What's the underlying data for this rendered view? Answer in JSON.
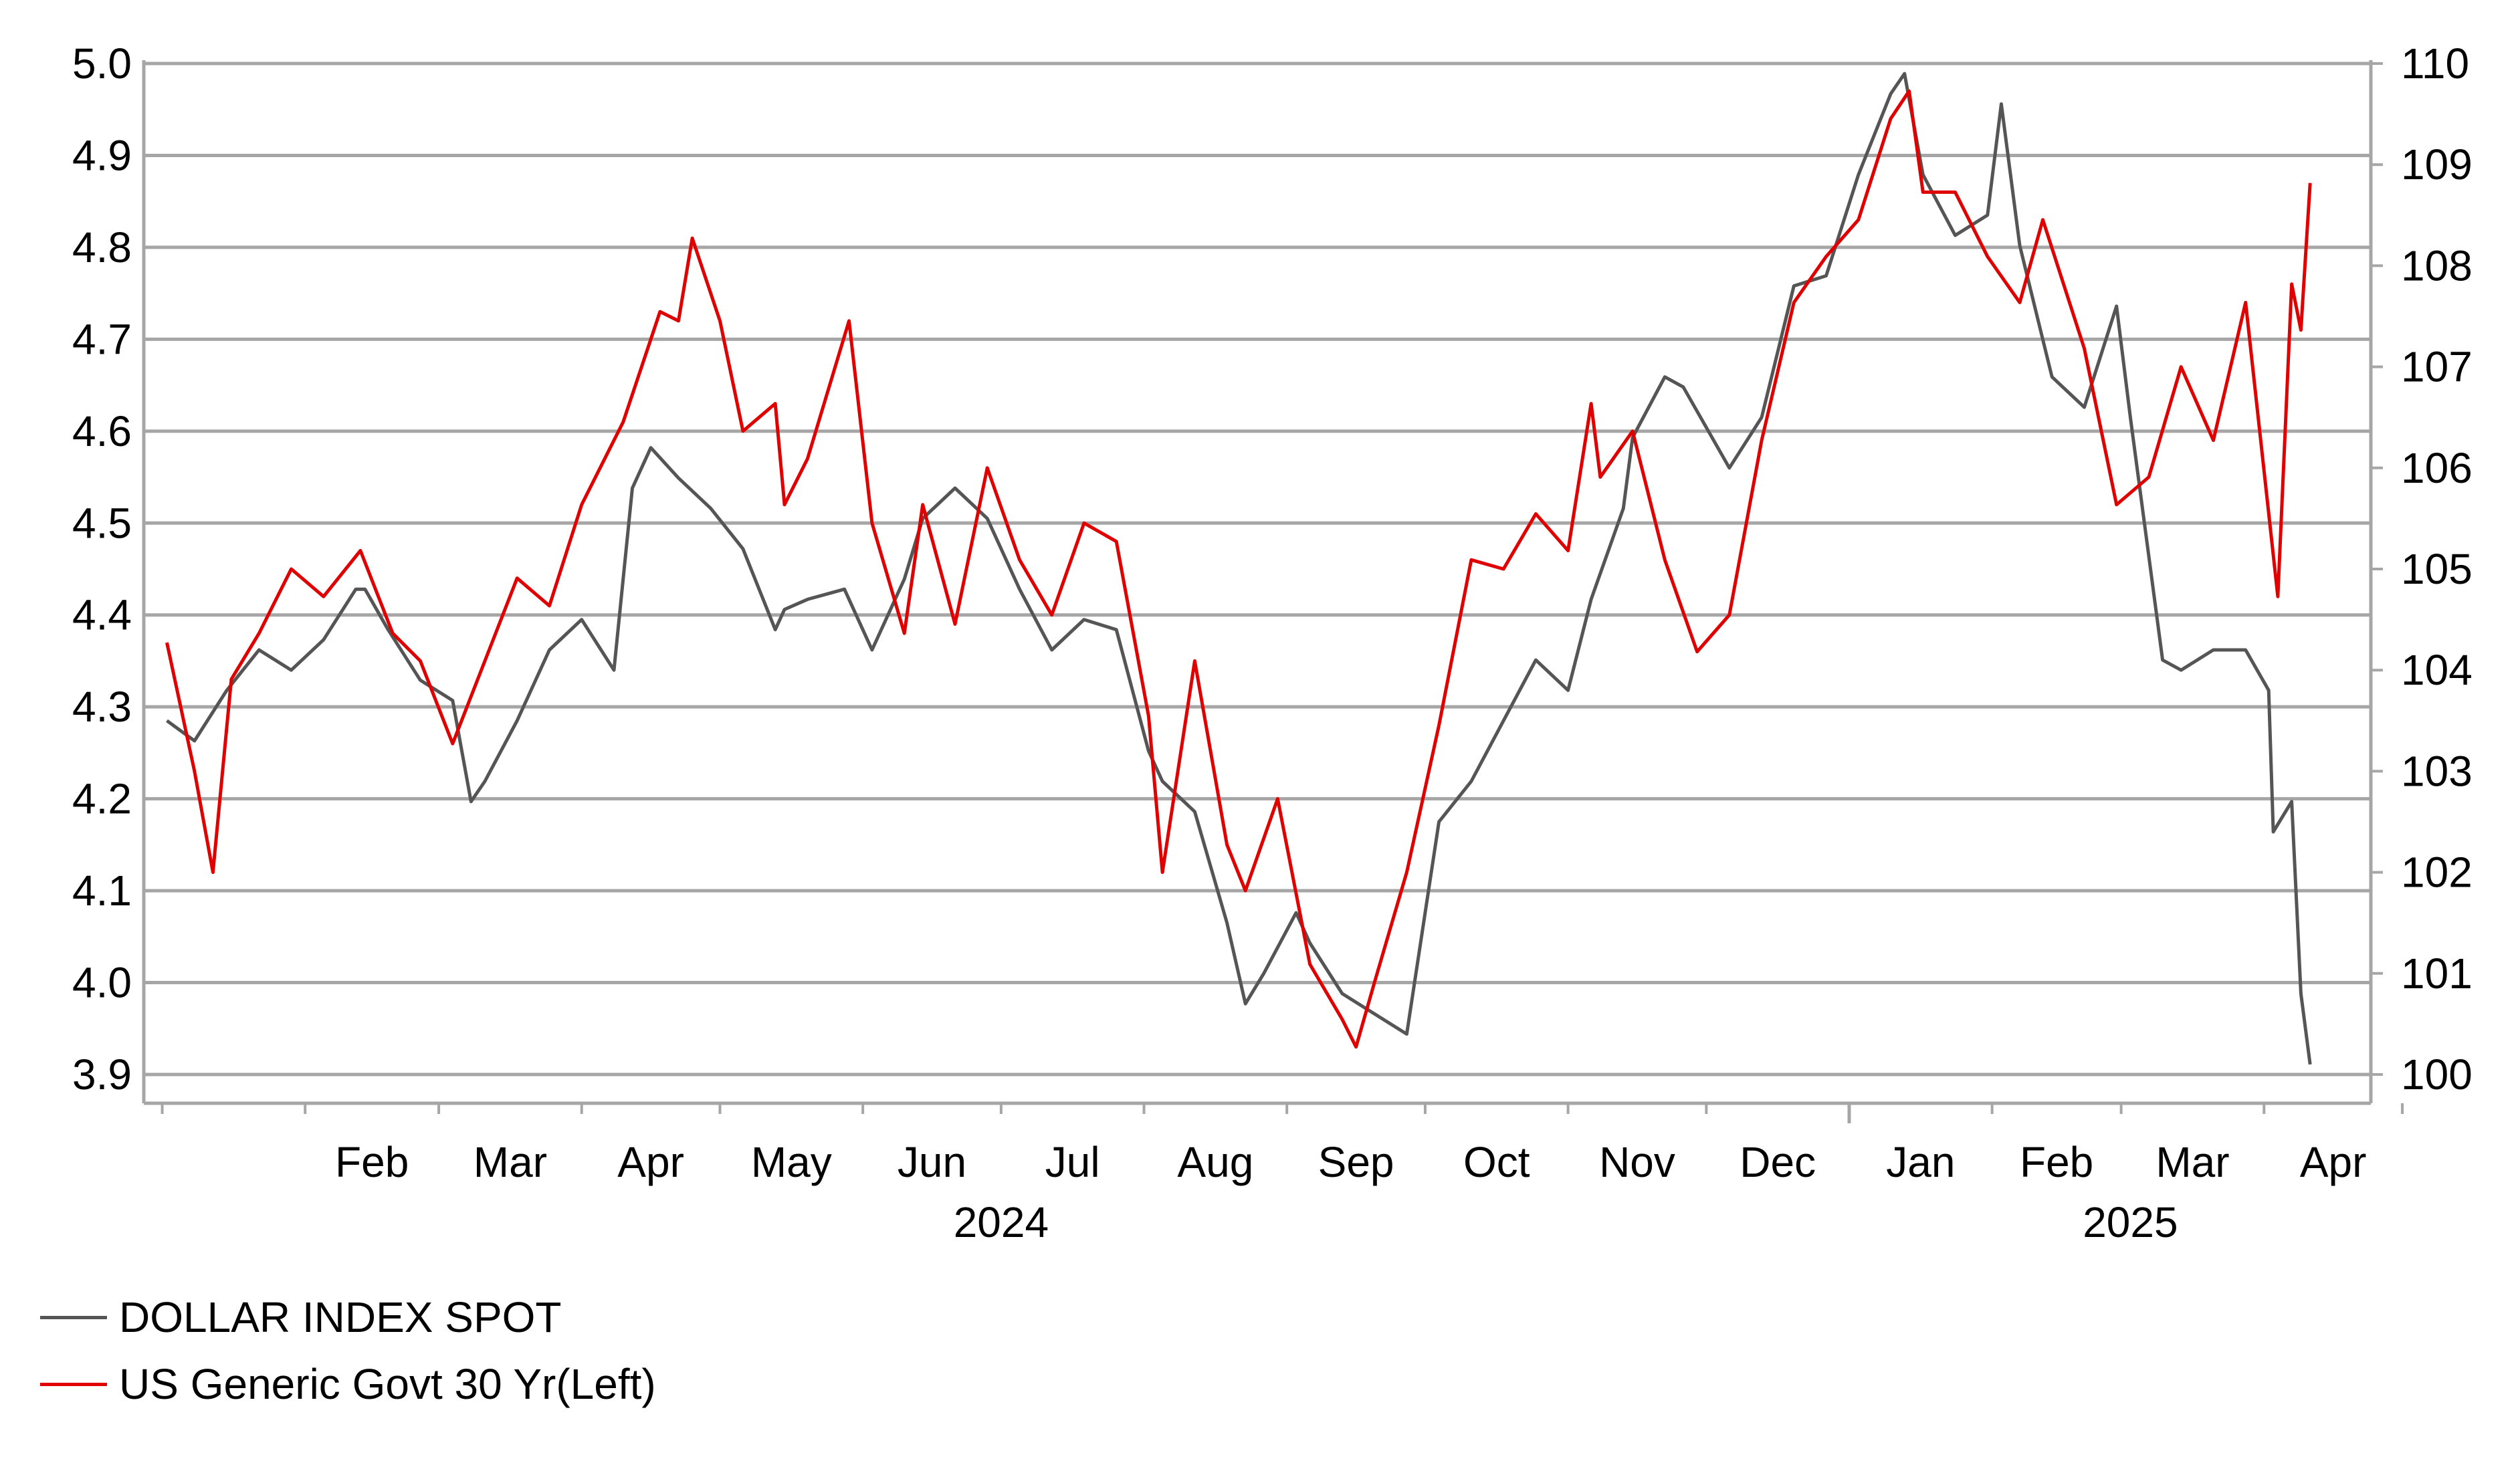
{
  "chart_data": {
    "type": "line",
    "y_left": {
      "ticks": [
        "5.0",
        "4.9",
        "4.8",
        "4.7",
        "4.6",
        "4.5",
        "4.4",
        "4.3",
        "4.2",
        "4.1",
        "4.0",
        "3.9"
      ],
      "range": [
        3.9,
        5.0
      ]
    },
    "y_right": {
      "ticks": [
        "110",
        "109",
        "108",
        "107",
        "106",
        "105",
        "104",
        "103",
        "102",
        "101",
        "100"
      ],
      "range": [
        100,
        110
      ]
    },
    "x_ticks": [
      "Feb",
      "Mar",
      "Apr",
      "May",
      "Jun",
      "Jul",
      "Aug",
      "Sep",
      "Oct",
      "Nov",
      "Dec",
      "Jan",
      "Feb",
      "Mar",
      "Apr"
    ],
    "x_year_labels": [
      "2024",
      "2025"
    ],
    "grid": true,
    "legend_position": "bottom-left",
    "series": [
      {
        "name": "DOLLAR INDEX SPOT",
        "axis": "right",
        "color": "#555555",
        "x": [
          "2024-01-02",
          "2024-01-08",
          "2024-01-15",
          "2024-01-22",
          "2024-01-29",
          "2024-02-05",
          "2024-02-12",
          "2024-02-14",
          "2024-02-19",
          "2024-02-26",
          "2024-03-04",
          "2024-03-08",
          "2024-03-11",
          "2024-03-18",
          "2024-03-25",
          "2024-04-01",
          "2024-04-08",
          "2024-04-12",
          "2024-04-16",
          "2024-04-22",
          "2024-04-29",
          "2024-05-06",
          "2024-05-13",
          "2024-05-15",
          "2024-05-20",
          "2024-05-28",
          "2024-06-03",
          "2024-06-10",
          "2024-06-14",
          "2024-06-21",
          "2024-06-28",
          "2024-07-05",
          "2024-07-12",
          "2024-07-19",
          "2024-07-26",
          "2024-08-02",
          "2024-08-05",
          "2024-08-12",
          "2024-08-19",
          "2024-08-23",
          "2024-08-27",
          "2024-09-03",
          "2024-09-06",
          "2024-09-13",
          "2024-09-20",
          "2024-09-27",
          "2024-10-04",
          "2024-10-11",
          "2024-10-18",
          "2024-10-25",
          "2024-11-01",
          "2024-11-06",
          "2024-11-13",
          "2024-11-15",
          "2024-11-22",
          "2024-11-26",
          "2024-12-06",
          "2024-12-13",
          "2024-12-20",
          "2024-12-27",
          "2025-01-03",
          "2025-01-10",
          "2025-01-13",
          "2025-01-17",
          "2025-01-24",
          "2025-01-31",
          "2025-02-03",
          "2025-02-07",
          "2025-02-14",
          "2025-02-21",
          "2025-02-28",
          "2025-03-03",
          "2025-03-10",
          "2025-03-14",
          "2025-03-21",
          "2025-03-28",
          "2025-04-02",
          "2025-04-03",
          "2025-04-07",
          "2025-04-09",
          "2025-04-11"
        ],
        "values": [
          103.5,
          103.3,
          103.8,
          104.2,
          104.0,
          104.3,
          104.8,
          104.8,
          104.4,
          103.9,
          103.7,
          102.7,
          102.9,
          103.5,
          104.2,
          104.5,
          104.0,
          105.8,
          106.2,
          105.9,
          105.6,
          105.2,
          104.4,
          104.6,
          104.7,
          104.8,
          104.2,
          104.9,
          105.5,
          105.8,
          105.5,
          104.8,
          104.2,
          104.5,
          104.4,
          103.2,
          102.9,
          102.6,
          101.5,
          100.7,
          101.0,
          101.6,
          101.3,
          100.8,
          100.6,
          100.4,
          102.5,
          102.9,
          103.5,
          104.1,
          103.8,
          104.7,
          105.6,
          106.3,
          106.9,
          106.8,
          106.0,
          106.5,
          107.8,
          107.9,
          108.9,
          109.7,
          109.9,
          108.9,
          108.3,
          108.5,
          109.6,
          108.2,
          106.9,
          106.6,
          107.6,
          106.5,
          104.1,
          104.0,
          104.2,
          104.2,
          103.8,
          102.4,
          102.7,
          100.8,
          100.1
        ]
      },
      {
        "name": "US Generic Govt 30 Yr(Left)",
        "axis": "left",
        "color": "#e00000",
        "x": [
          "2024-01-02",
          "2024-01-08",
          "2024-01-12",
          "2024-01-16",
          "2024-01-22",
          "2024-01-29",
          "2024-02-05",
          "2024-02-13",
          "2024-02-20",
          "2024-02-26",
          "2024-03-04",
          "2024-03-11",
          "2024-03-18",
          "2024-03-25",
          "2024-04-01",
          "2024-04-10",
          "2024-04-16",
          "2024-04-18",
          "2024-04-22",
          "2024-04-25",
          "2024-05-01",
          "2024-05-06",
          "2024-05-13",
          "2024-05-15",
          "2024-05-20",
          "2024-05-29",
          "2024-06-03",
          "2024-06-10",
          "2024-06-14",
          "2024-06-21",
          "2024-06-28",
          "2024-07-05",
          "2024-07-12",
          "2024-07-19",
          "2024-07-26",
          "2024-08-02",
          "2024-08-05",
          "2024-08-12",
          "2024-08-19",
          "2024-08-23",
          "2024-08-30",
          "2024-09-06",
          "2024-09-13",
          "2024-09-16",
          "2024-09-20",
          "2024-09-27",
          "2024-10-04",
          "2024-10-11",
          "2024-10-18",
          "2024-10-25",
          "2024-11-01",
          "2024-11-06",
          "2024-11-08",
          "2024-11-15",
          "2024-11-22",
          "2024-11-29",
          "2024-12-06",
          "2024-12-13",
          "2024-12-20",
          "2024-12-27",
          "2025-01-03",
          "2025-01-10",
          "2025-01-14",
          "2025-01-17",
          "2025-01-24",
          "2025-01-31",
          "2025-02-07",
          "2025-02-12",
          "2025-02-21",
          "2025-02-28",
          "2025-03-07",
          "2025-03-14",
          "2025-03-21",
          "2025-03-28",
          "2025-04-04",
          "2025-04-07",
          "2025-04-09",
          "2025-04-11"
        ],
        "values": [
          4.37,
          4.23,
          4.12,
          4.33,
          4.38,
          4.45,
          4.42,
          4.47,
          4.38,
          4.35,
          4.26,
          4.35,
          4.44,
          4.41,
          4.52,
          4.61,
          4.7,
          4.73,
          4.72,
          4.81,
          4.72,
          4.6,
          4.63,
          4.52,
          4.57,
          4.72,
          4.5,
          4.38,
          4.52,
          4.39,
          4.56,
          4.46,
          4.4,
          4.5,
          4.48,
          4.29,
          4.12,
          4.35,
          4.15,
          4.1,
          4.2,
          4.02,
          3.96,
          3.93,
          4.0,
          4.12,
          4.28,
          4.46,
          4.45,
          4.51,
          4.47,
          4.63,
          4.55,
          4.6,
          4.46,
          4.36,
          4.4,
          4.59,
          4.74,
          4.79,
          4.83,
          4.94,
          4.97,
          4.86,
          4.86,
          4.79,
          4.74,
          4.83,
          4.69,
          4.52,
          4.55,
          4.67,
          4.59,
          4.74,
          4.42,
          4.76,
          4.71,
          4.87
        ]
      }
    ]
  }
}
